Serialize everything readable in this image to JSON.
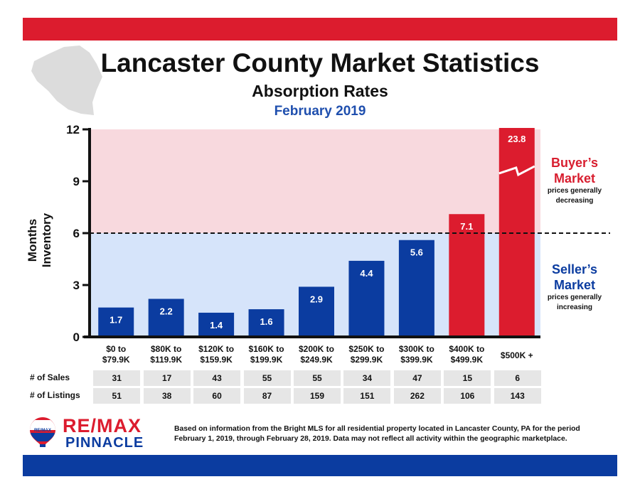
{
  "colors": {
    "accent_red": "#dc1c2e",
    "accent_blue": "#0b3ca0",
    "buyer_zone": "#f8d9de",
    "seller_zone": "#d6e4fa"
  },
  "header": {
    "title": "Lancaster County Market Statistics",
    "subtitle": "Absorption Rates",
    "period": "February 2019"
  },
  "zones": {
    "buyer": {
      "title_line1": "Buyer’s",
      "title_line2": "Market",
      "note_line1": "prices generally",
      "note_line2": "decreasing"
    },
    "seller": {
      "title_line1": "Seller’s",
      "title_line2": "Market",
      "note_line1": "prices generally",
      "note_line2": "increasing"
    }
  },
  "chart_data": {
    "type": "bar",
    "categories": [
      [
        "$0 to",
        "$79.9K"
      ],
      [
        "$80K to",
        "$119.9K"
      ],
      [
        "$120K to",
        "$159.9K"
      ],
      [
        "$160K to",
        "$199.9K"
      ],
      [
        "$200K to",
        "$249.9K"
      ],
      [
        "$250K to",
        "$299.9K"
      ],
      [
        "$300K to",
        "$399.9K"
      ],
      [
        "$400K to",
        "$499.9K"
      ],
      [
        "$500K +"
      ]
    ],
    "values": [
      1.7,
      2.2,
      1.4,
      1.6,
      2.9,
      4.4,
      5.6,
      7.1,
      23.8
    ],
    "value_labels": [
      "1.7",
      "2.2",
      "1.4",
      "1.6",
      "2.9",
      "4.4",
      "5.6",
      "7.1",
      "23.8"
    ],
    "bar_colors": [
      "#0b3ca0",
      "#0b3ca0",
      "#0b3ca0",
      "#0b3ca0",
      "#0b3ca0",
      "#0b3ca0",
      "#0b3ca0",
      "#dc1c2e",
      "#dc1c2e"
    ],
    "axis_break_bar_index": 8,
    "threshold": 6,
    "ylabel": "Months Inventory",
    "ylim": [
      0,
      12
    ],
    "yticks": [
      0,
      3,
      6,
      9,
      12
    ],
    "grid": false,
    "legend": "none"
  },
  "table": {
    "sales_label": "# of Sales",
    "sales": [
      "31",
      "17",
      "43",
      "55",
      "55",
      "34",
      "47",
      "15",
      "6"
    ],
    "listings_label": "# of Listings",
    "listings": [
      "51",
      "38",
      "60",
      "87",
      "159",
      "151",
      "262",
      "106",
      "143"
    ]
  },
  "brand": {
    "logo_text": "RE/MAX",
    "name": "RE/MAX",
    "sub": "PINNACLE"
  },
  "footnote": {
    "line1": "Based on information from the Bright MLS for all residential property located in Lancaster County, PA for the period",
    "line2": "February 1, 2019, through February 28, 2019.  Data may not reflect all activity within the geographic marketplace."
  }
}
